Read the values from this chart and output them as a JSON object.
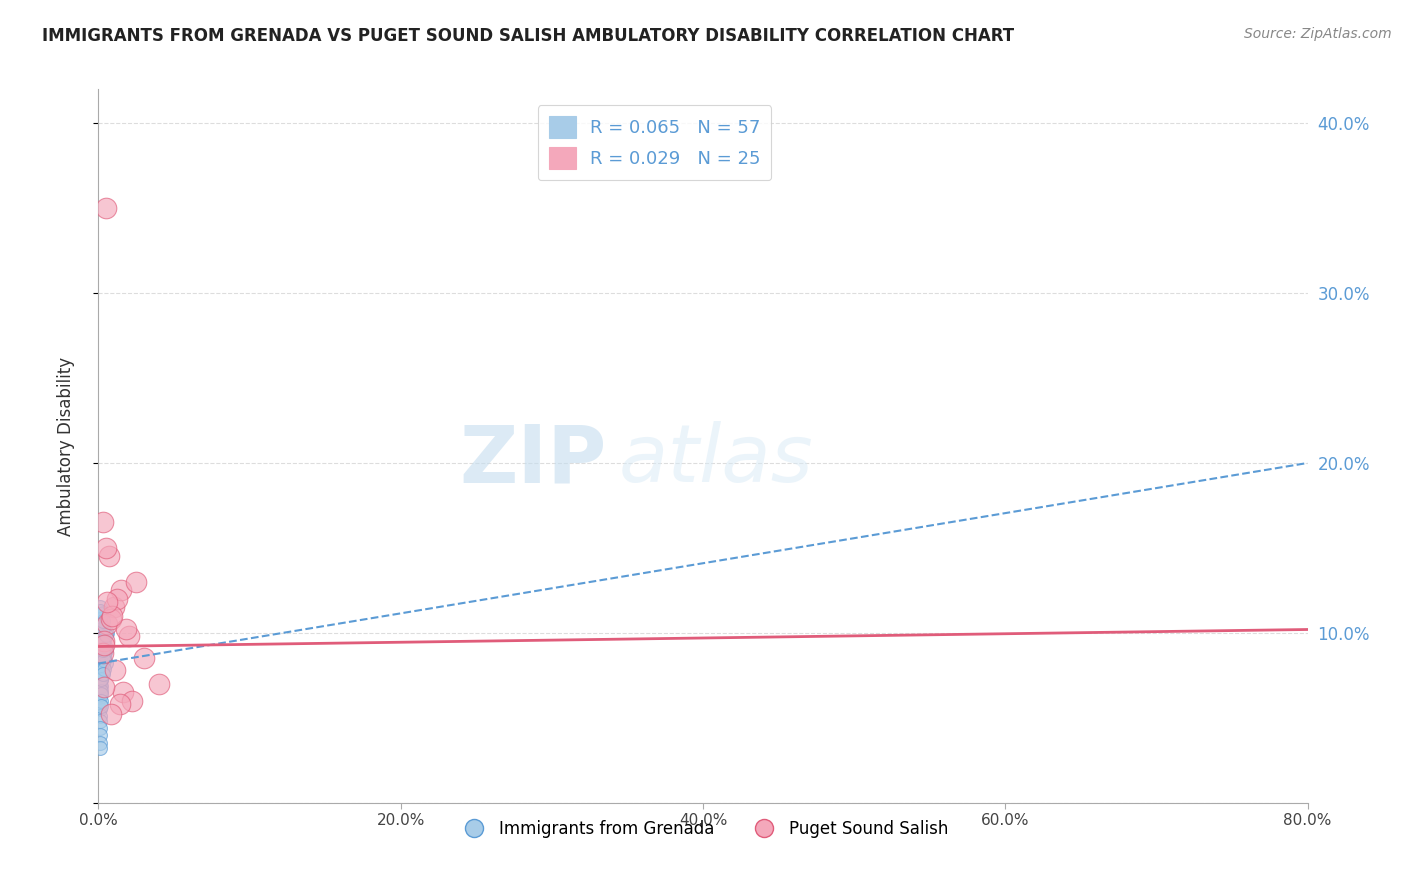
{
  "title": "IMMIGRANTS FROM GRENADA VS PUGET SOUND SALISH AMBULATORY DISABILITY CORRELATION CHART",
  "source": "Source: ZipAtlas.com",
  "ylabel": "Ambulatory Disability",
  "xlabel": "",
  "R_blue": 0.065,
  "N_blue": 57,
  "R_pink": 0.029,
  "N_pink": 25,
  "blue_color": "#a8cce8",
  "pink_color": "#f4a8bb",
  "blue_line_color": "#5b9bd5",
  "pink_line_color": "#e05c7a",
  "xmin": 0.0,
  "xmax": 0.8,
  "ymin": 0.0,
  "ymax": 0.42,
  "yticks": [
    0.0,
    0.1,
    0.2,
    0.3,
    0.4
  ],
  "ytick_labels": [
    "",
    "10.0%",
    "20.0%",
    "30.0%",
    "40.0%"
  ],
  "xticks": [
    0.0,
    0.2,
    0.4,
    0.6,
    0.8
  ],
  "xtick_labels": [
    "0.0%",
    "20.0%",
    "40.0%",
    "60.0%",
    "80.0%"
  ],
  "blue_scatter_x": [
    0.001,
    0.002,
    0.003,
    0.001,
    0.002,
    0.004,
    0.001,
    0.003,
    0.005,
    0.002,
    0.001,
    0.003,
    0.002,
    0.004,
    0.001,
    0.006,
    0.002,
    0.001,
    0.003,
    0.005,
    0.002,
    0.001,
    0.004,
    0.003,
    0.002,
    0.001,
    0.005,
    0.002,
    0.003,
    0.001,
    0.004,
    0.002,
    0.001,
    0.003,
    0.002,
    0.001,
    0.004,
    0.003,
    0.002,
    0.001,
    0.005,
    0.002,
    0.003,
    0.001,
    0.002,
    0.004,
    0.001,
    0.003,
    0.002,
    0.001,
    0.004,
    0.002,
    0.003,
    0.001,
    0.002,
    0.003,
    0.001
  ],
  "blue_scatter_y": [
    0.115,
    0.105,
    0.112,
    0.108,
    0.098,
    0.095,
    0.088,
    0.102,
    0.09,
    0.111,
    0.075,
    0.08,
    0.092,
    0.085,
    0.068,
    0.1,
    0.078,
    0.062,
    0.093,
    0.082,
    0.104,
    0.07,
    0.097,
    0.086,
    0.074,
    0.055,
    0.091,
    0.083,
    0.077,
    0.065,
    0.089,
    0.072,
    0.058,
    0.096,
    0.081,
    0.051,
    0.087,
    0.094,
    0.069,
    0.048,
    0.099,
    0.066,
    0.103,
    0.044,
    0.073,
    0.084,
    0.04,
    0.09,
    0.064,
    0.035,
    0.079,
    0.06,
    0.076,
    0.032,
    0.057,
    0.107,
    0.113
  ],
  "pink_scatter_x": [
    0.005,
    0.003,
    0.01,
    0.006,
    0.015,
    0.008,
    0.02,
    0.012,
    0.004,
    0.025,
    0.007,
    0.018,
    0.003,
    0.03,
    0.009,
    0.04,
    0.006,
    0.016,
    0.004,
    0.011,
    0.022,
    0.005,
    0.014,
    0.008,
    0.004
  ],
  "pink_scatter_y": [
    0.35,
    0.165,
    0.115,
    0.105,
    0.125,
    0.108,
    0.098,
    0.12,
    0.095,
    0.13,
    0.145,
    0.102,
    0.088,
    0.085,
    0.11,
    0.07,
    0.118,
    0.065,
    0.093,
    0.078,
    0.06,
    0.15,
    0.058,
    0.052,
    0.068
  ],
  "blue_trend_x": [
    0.0,
    0.8
  ],
  "blue_trend_y": [
    0.082,
    0.2
  ],
  "pink_trend_x": [
    0.0,
    0.8
  ],
  "pink_trend_y": [
    0.092,
    0.102
  ],
  "watermark_zip": "ZIP",
  "watermark_atlas": "atlas",
  "background_color": "#ffffff",
  "grid_color": "#cccccc",
  "legend_series": [
    "Immigrants from Grenada",
    "Puget Sound Salish"
  ]
}
